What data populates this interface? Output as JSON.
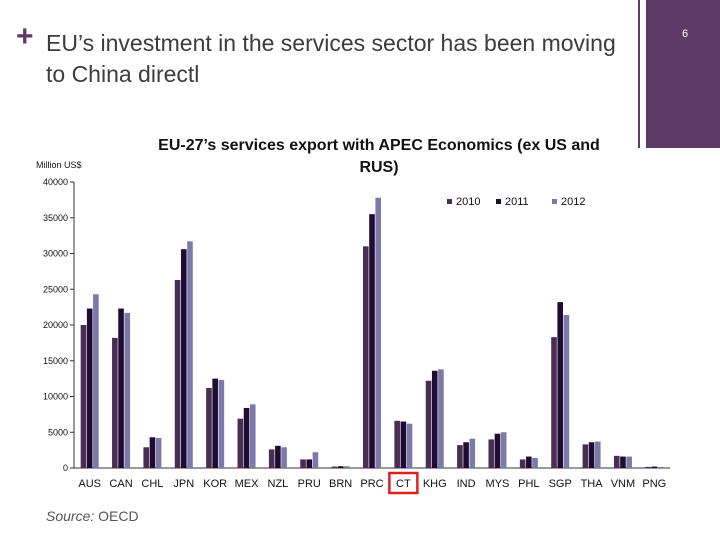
{
  "slide": {
    "headline": "EU’s investment in the services sector has been moving to China directl",
    "page_number": "6",
    "source_label": "Source:",
    "source_value": "OECD",
    "unit_label": "Million US$"
  },
  "colors": {
    "accent": "#5e3b67",
    "series": [
      "#4a2d55",
      "#1f0c33",
      "#7b7aa8"
    ],
    "highlight_box": "#e02020"
  },
  "chart_data": {
    "type": "bar",
    "title": "EU-27’s services export with APEC Economics (ex US and RUS)",
    "xlabel": "",
    "ylabel": "Million US$",
    "ylim": [
      0,
      40000
    ],
    "yticks": [
      "0",
      "5000",
      "10000",
      "15000",
      "20000",
      "25000",
      "30000",
      "35000",
      "40000"
    ],
    "categories": [
      "AUS",
      "CAN",
      "CHL",
      "JPN",
      "KOR",
      "MEX",
      "NZL",
      "PRU",
      "BRN",
      "PRC",
      "CT",
      "KHG",
      "IND",
      "MYS",
      "PHL",
      "SGP",
      "THA",
      "VNM",
      "PNG"
    ],
    "highlight_category": "CT",
    "legend_position": "top-right",
    "series": [
      {
        "name": "2010",
        "values": [
          20000,
          18200,
          2900,
          26300,
          11200,
          6900,
          2600,
          1200,
          200,
          31000,
          6600,
          12200,
          3200,
          4000,
          1200,
          18300,
          3300,
          1700,
          150
        ]
      },
      {
        "name": "2011",
        "values": [
          22300,
          22300,
          4300,
          30600,
          12500,
          8400,
          3100,
          1200,
          250,
          35500,
          6500,
          13600,
          3600,
          4800,
          1600,
          23200,
          3600,
          1600,
          200
        ]
      },
      {
        "name": "2012",
        "values": [
          24300,
          21700,
          4200,
          31700,
          12300,
          8900,
          2900,
          2200,
          250,
          37800,
          6200,
          13800,
          4100,
          5000,
          1400,
          21400,
          3700,
          1600,
          150
        ]
      }
    ]
  }
}
